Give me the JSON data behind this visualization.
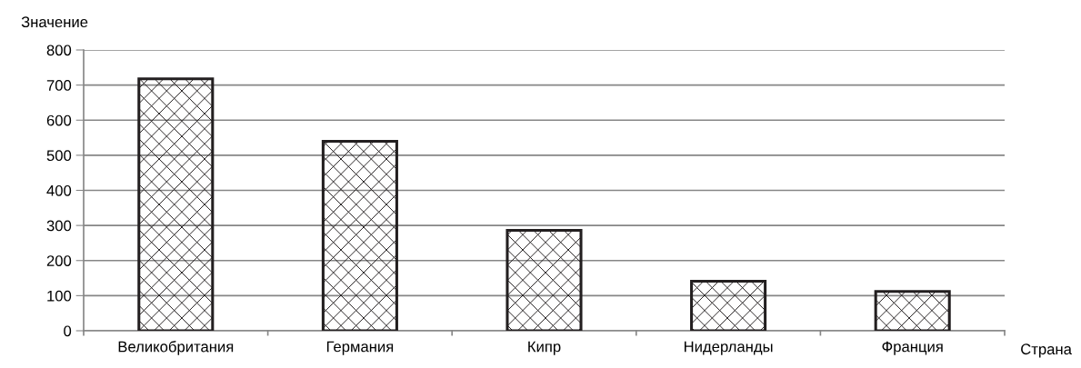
{
  "chart_data": {
    "type": "bar",
    "xlabel": "Страна",
    "ylabel": "Значение",
    "categories": [
      "Великобритания",
      "Германия",
      "Кипр",
      "Нидерланды",
      "Франция"
    ],
    "values": [
      718,
      540,
      286,
      141,
      112
    ],
    "color": "#231f20",
    "ylim": [
      0,
      800
    ],
    "yticks": [
      0,
      100,
      200,
      300,
      400,
      500,
      600,
      700,
      800
    ],
    "grid": "y"
  }
}
